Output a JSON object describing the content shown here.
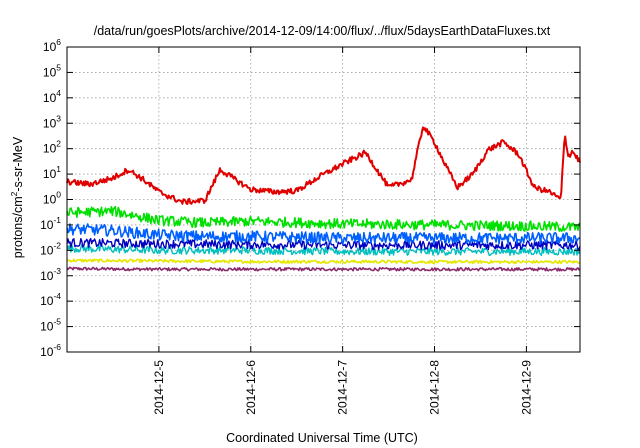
{
  "chart_data": {
    "type": "line",
    "title": "/data/run/goesPlots/archive/2014-12-09/14:00/flux/../flux/5daysEarthDataFluxes.txt",
    "xlabel": "Coordinated Universal Time (UTC)",
    "ylabel": {
      "prefix": "protons/cm",
      "sup": "2",
      "suffix": "-s-sr-MeV"
    },
    "yscale": "log",
    "ylim_exp": [
      -6,
      6
    ],
    "y_ticks": [
      {
        "base": "10",
        "exp": "-6"
      },
      {
        "base": "10",
        "exp": "-5"
      },
      {
        "base": "10",
        "exp": "-4"
      },
      {
        "base": "10",
        "exp": "-3"
      },
      {
        "base": "10",
        "exp": "-2"
      },
      {
        "base": "10",
        "exp": "-1"
      },
      {
        "base": "10",
        "exp": "0"
      },
      {
        "base": "10",
        "exp": "1"
      },
      {
        "base": "10",
        "exp": "2"
      },
      {
        "base": "10",
        "exp": "3"
      },
      {
        "base": "10",
        "exp": "4"
      },
      {
        "base": "10",
        "exp": "5"
      },
      {
        "base": "10",
        "exp": "6"
      }
    ],
    "xlim": [
      "2014-12-04 00:00",
      "2014-12-09 14:00"
    ],
    "x_ticks": [
      "2014-12-5",
      "2014-12-6",
      "2014-12-7",
      "2014-12-8",
      "2014-12-9"
    ],
    "grid": true,
    "series": [
      {
        "color": "#e00000",
        "x": [
          "2014-12-04 00:00",
          "2014-12-04 06:00",
          "2014-12-04 12:00",
          "2014-12-04 16:00",
          "2014-12-04 20:00",
          "2014-12-05 00:00",
          "2014-12-05 06:00",
          "2014-12-05 12:00",
          "2014-12-05 16:00",
          "2014-12-05 20:00",
          "2014-12-06 00:00",
          "2014-12-06 06:00",
          "2014-12-06 12:00",
          "2014-12-06 18:00",
          "2014-12-07 00:00",
          "2014-12-07 06:00",
          "2014-12-07 12:00",
          "2014-12-07 18:00",
          "2014-12-07 21:00",
          "2014-12-08 00:00",
          "2014-12-08 03:00",
          "2014-12-08 06:00",
          "2014-12-08 10:00",
          "2014-12-08 14:00",
          "2014-12-08 18:00",
          "2014-12-08 22:00",
          "2014-12-09 02:00",
          "2014-12-09 06:00",
          "2014-12-09 09:00",
          "2014-12-09 10:00",
          "2014-12-09 11:00",
          "2014-12-09 12:00",
          "2014-12-09 14:00"
        ],
        "y": [
          5,
          4,
          7,
          15,
          6,
          2,
          0.8,
          0.9,
          15,
          6,
          2.5,
          2,
          2.2,
          8,
          25,
          70,
          3,
          6,
          800,
          180,
          20,
          3,
          10,
          90,
          180,
          60,
          3,
          2,
          1,
          350,
          50,
          80,
          30
        ]
      },
      {
        "color": "#00e000",
        "x": [
          "2014-12-04 00:00",
          "2014-12-04 12:00",
          "2014-12-05 00:00",
          "2014-12-05 12:00",
          "2014-12-06 00:00",
          "2014-12-07 00:00",
          "2014-12-08 00:00",
          "2014-12-09 00:00",
          "2014-12-09 14:00"
        ],
        "y": [
          0.3,
          0.35,
          0.15,
          0.12,
          0.14,
          0.11,
          0.1,
          0.09,
          0.08
        ]
      },
      {
        "color": "#0060ff",
        "x": [
          "2014-12-04 00:00",
          "2014-12-04 12:00",
          "2014-12-05 00:00",
          "2014-12-05 12:00",
          "2014-12-06 00:00",
          "2014-12-07 00:00",
          "2014-12-08 00:00",
          "2014-12-09 00:00",
          "2014-12-09 14:00"
        ],
        "y": [
          0.07,
          0.06,
          0.04,
          0.035,
          0.035,
          0.03,
          0.03,
          0.03,
          0.03
        ]
      },
      {
        "color": "#00bfbf",
        "x": [
          "2014-12-04 00:00",
          "2014-12-05 00:00",
          "2014-12-06 00:00",
          "2014-12-07 00:00",
          "2014-12-08 00:00",
          "2014-12-09 00:00",
          "2014-12-09 14:00"
        ],
        "y": [
          0.012,
          0.01,
          0.01,
          0.009,
          0.009,
          0.009,
          0.009
        ]
      },
      {
        "color": "#0000c0",
        "x": [
          "2014-12-04 00:00",
          "2014-12-05 00:00",
          "2014-12-06 00:00",
          "2014-12-07 00:00",
          "2014-12-08 00:00",
          "2014-12-09 00:00",
          "2014-12-09 14:00"
        ],
        "y": [
          0.02,
          0.018,
          0.017,
          0.016,
          0.016,
          0.016,
          0.016
        ]
      },
      {
        "color": "#e6e600",
        "x": [
          "2014-12-04 00:00",
          "2014-12-05 00:00",
          "2014-12-06 00:00",
          "2014-12-07 00:00",
          "2014-12-08 00:00",
          "2014-12-09 00:00",
          "2014-12-09 14:00"
        ],
        "y": [
          0.004,
          0.0038,
          0.0036,
          0.0036,
          0.0035,
          0.0035,
          0.0035
        ]
      },
      {
        "color": "#8b2a6b",
        "x": [
          "2014-12-04 00:00",
          "2014-12-05 00:00",
          "2014-12-06 00:00",
          "2014-12-07 00:00",
          "2014-12-08 00:00",
          "2014-12-09 00:00",
          "2014-12-09 14:00"
        ],
        "y": [
          0.0019,
          0.0018,
          0.0018,
          0.0018,
          0.0018,
          0.0018,
          0.0018
        ]
      }
    ]
  }
}
